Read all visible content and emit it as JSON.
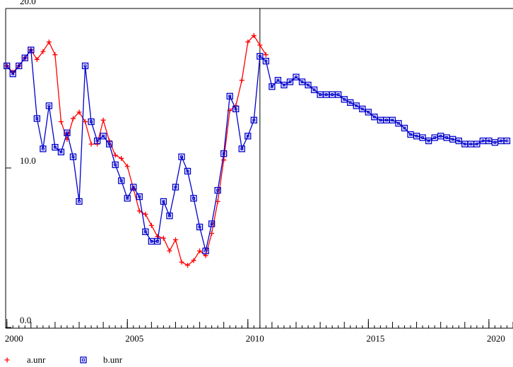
{
  "chart_data": {
    "type": "line",
    "x": [
      2000,
      2000.25,
      2000.5,
      2000.75,
      2001,
      2001.25,
      2001.5,
      2001.75,
      2002,
      2002.25,
      2002.5,
      2002.75,
      2003,
      2003.25,
      2003.5,
      2003.75,
      2004,
      2004.25,
      2004.5,
      2004.75,
      2005,
      2005.25,
      2005.5,
      2005.75,
      2006,
      2006.25,
      2006.5,
      2006.75,
      2007,
      2007.25,
      2007.5,
      2007.75,
      2008,
      2008.25,
      2008.5,
      2008.75,
      2009,
      2009.25,
      2009.5,
      2009.75,
      2010,
      2010.25,
      2010.5,
      2010.75,
      2011,
      2011.25,
      2011.5,
      2011.75,
      2012,
      2012.25,
      2012.5,
      2012.75,
      2013,
      2013.25,
      2013.5,
      2013.75,
      2014,
      2014.25,
      2014.5,
      2014.75,
      2015,
      2015.25,
      2015.5,
      2015.75,
      2016,
      2016.25,
      2016.5,
      2016.75,
      2017,
      2017.25,
      2017.5,
      2017.75,
      2018,
      2018.25,
      2018.5,
      2018.75,
      2019,
      2019.25,
      2019.5,
      2019.75,
      2020,
      2020.25,
      2020.5,
      2020.75
    ],
    "series": [
      {
        "name": "a.unr",
        "color": "#ff0000",
        "marker": "plus",
        "values": [
          16.4,
          16.0,
          16.4,
          16.9,
          17.4,
          16.8,
          17.3,
          17.9,
          17.1,
          12.9,
          11.8,
          13.1,
          13.5,
          12.9,
          11.5,
          11.5,
          13.0,
          11.7,
          10.8,
          10.6,
          10.1,
          8.7,
          7.3,
          7.1,
          6.4,
          5.7,
          5.6,
          4.8,
          5.5,
          4.1,
          3.9,
          4.2,
          4.8,
          4.5,
          5.9,
          7.9,
          10.5,
          13.6,
          13.9,
          15.5,
          17.9,
          18.3,
          17.7,
          17.1,
          null,
          null,
          null,
          null,
          null,
          null,
          null,
          null,
          null,
          null,
          null,
          null,
          null,
          null,
          null,
          null,
          null,
          null,
          null,
          null,
          null,
          null,
          null,
          null,
          null,
          null,
          null,
          null,
          null,
          null,
          null,
          null,
          null,
          null,
          null,
          null,
          null,
          null,
          null,
          null
        ]
      },
      {
        "name": "b.unr",
        "color": "#0000cc",
        "marker": "square",
        "values": [
          16.4,
          15.9,
          16.4,
          16.9,
          17.4,
          13.1,
          11.2,
          13.9,
          11.3,
          11.0,
          12.2,
          10.7,
          7.9,
          16.4,
          12.9,
          11.7,
          12.0,
          11.5,
          10.2,
          9.2,
          8.1,
          8.8,
          8.2,
          6.0,
          5.4,
          5.4,
          7.9,
          7.0,
          8.8,
          10.7,
          9.8,
          8.1,
          6.3,
          4.8,
          6.5,
          8.6,
          10.9,
          14.5,
          13.7,
          11.2,
          12.0,
          13.0,
          17.0,
          16.7,
          15.1,
          15.5,
          15.2,
          15.4,
          15.7,
          15.4,
          15.2,
          14.9,
          14.6,
          14.6,
          14.6,
          14.6,
          14.3,
          14.1,
          13.9,
          13.7,
          13.5,
          13.2,
          13.0,
          13.0,
          13.0,
          12.8,
          12.5,
          12.1,
          12.0,
          11.9,
          11.7,
          11.9,
          12.0,
          11.9,
          11.8,
          11.7,
          11.5,
          11.5,
          11.5,
          11.7,
          11.7,
          11.6,
          11.7,
          11.7
        ]
      }
    ],
    "xlim": [
      1999.95,
      2021
    ],
    "xticks": [
      2000,
      2005,
      2010,
      2015,
      2020
    ],
    "ylim": [
      0,
      20
    ],
    "yticks": [
      {
        "value": 0,
        "label": "0.0"
      },
      {
        "value": 10,
        "label": "10.0"
      },
      {
        "value": 20,
        "label": "20.0"
      }
    ],
    "forecast_start": 2010.5,
    "legend": "bottom-left"
  }
}
